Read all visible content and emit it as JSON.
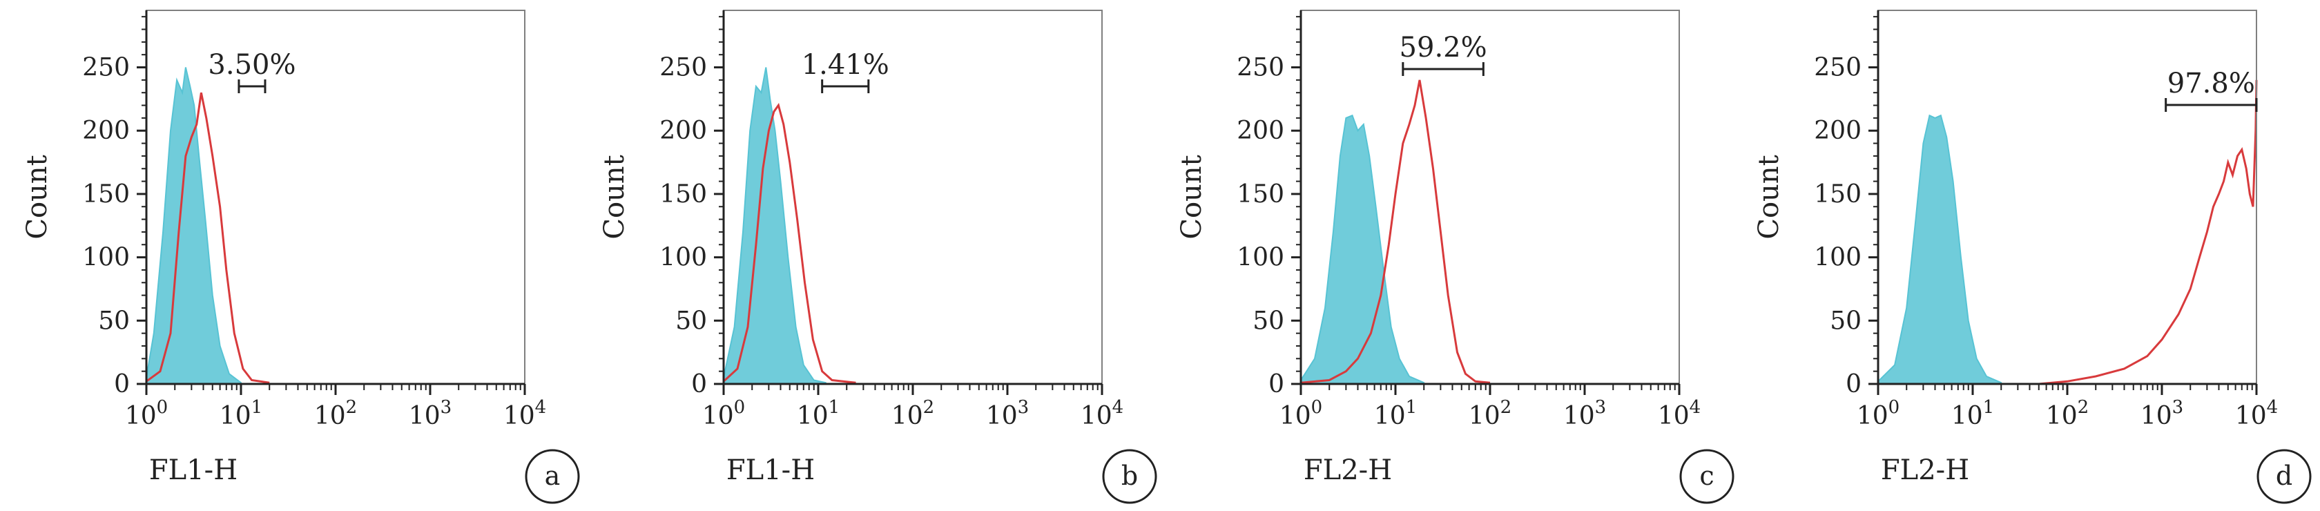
{
  "chart_data": [
    {
      "panel": "a",
      "type": "area",
      "xlabel": "FL1-H",
      "ylabel": "Count",
      "xscale": "log",
      "xlim": [
        1,
        10000
      ],
      "ylim": [
        0,
        295
      ],
      "yticks": [
        "0",
        "50",
        "100",
        "150",
        "200",
        "250"
      ],
      "gate": {
        "label": "3.50%",
        "x": [
          9.5,
          18
        ]
      },
      "series": [
        {
          "color": "#57c3d4",
          "fill": true,
          "peak_x": 2.6,
          "peak_y": 250,
          "sigma": 0.16,
          "points": [
            [
              1.0,
              5
            ],
            [
              1.2,
              40
            ],
            [
              1.5,
              120
            ],
            [
              1.8,
              200
            ],
            [
              2.1,
              240
            ],
            [
              2.4,
              230
            ],
            [
              2.6,
              250
            ],
            [
              2.9,
              235
            ],
            [
              3.2,
              220
            ],
            [
              3.6,
              180
            ],
            [
              4.2,
              130
            ],
            [
              5.0,
              70
            ],
            [
              6.0,
              30
            ],
            [
              7.5,
              8
            ],
            [
              10,
              1
            ]
          ]
        },
        {
          "color": "#d83a3c",
          "fill": false,
          "points": [
            [
              1.0,
              2
            ],
            [
              1.4,
              10
            ],
            [
              1.8,
              40
            ],
            [
              2.2,
              120
            ],
            [
              2.6,
              180
            ],
            [
              3.0,
              195
            ],
            [
              3.4,
              205
            ],
            [
              3.8,
              230
            ],
            [
              4.3,
              210
            ],
            [
              5.0,
              180
            ],
            [
              6.0,
              140
            ],
            [
              7.0,
              90
            ],
            [
              8.5,
              40
            ],
            [
              10.5,
              12
            ],
            [
              13,
              3
            ],
            [
              20,
              1
            ]
          ]
        }
      ]
    },
    {
      "panel": "b",
      "type": "area",
      "xlabel": "FL1-H",
      "ylabel": "Count",
      "xscale": "log",
      "xlim": [
        1,
        10000
      ],
      "ylim": [
        0,
        295
      ],
      "yticks": [
        "0",
        "50",
        "100",
        "150",
        "200",
        "250"
      ],
      "gate": {
        "label": "1.41%",
        "x": [
          11,
          34
        ]
      },
      "series": [
        {
          "color": "#57c3d4",
          "fill": true,
          "points": [
            [
              1.0,
              5
            ],
            [
              1.3,
              45
            ],
            [
              1.6,
              120
            ],
            [
              1.9,
              200
            ],
            [
              2.2,
              235
            ],
            [
              2.5,
              230
            ],
            [
              2.8,
              250
            ],
            [
              3.1,
              225
            ],
            [
              3.5,
              200
            ],
            [
              4.0,
              160
            ],
            [
              4.8,
              100
            ],
            [
              5.8,
              45
            ],
            [
              7.0,
              15
            ],
            [
              9,
              3
            ],
            [
              12,
              1
            ]
          ]
        },
        {
          "color": "#d83a3c",
          "fill": false,
          "points": [
            [
              1.0,
              2
            ],
            [
              1.4,
              12
            ],
            [
              1.8,
              45
            ],
            [
              2.2,
              110
            ],
            [
              2.6,
              170
            ],
            [
              3.0,
              200
            ],
            [
              3.4,
              215
            ],
            [
              3.8,
              220
            ],
            [
              4.3,
              205
            ],
            [
              5.0,
              175
            ],
            [
              6.0,
              130
            ],
            [
              7.2,
              80
            ],
            [
              8.8,
              35
            ],
            [
              11,
              10
            ],
            [
              14,
              3
            ],
            [
              25,
              1
            ]
          ]
        }
      ]
    },
    {
      "panel": "c",
      "type": "area",
      "xlabel": "FL2-H",
      "ylabel": "Count",
      "xscale": "log",
      "xlim": [
        1,
        10000
      ],
      "ylim": [
        0,
        295
      ],
      "yticks": [
        "0",
        "50",
        "100",
        "150",
        "200",
        "250"
      ],
      "gate": {
        "label": "59.2%",
        "x": [
          12,
          85
        ]
      },
      "series": [
        {
          "color": "#57c3d4",
          "fill": true,
          "points": [
            [
              1.0,
              3
            ],
            [
              1.4,
              20
            ],
            [
              1.8,
              60
            ],
            [
              2.2,
              120
            ],
            [
              2.6,
              180
            ],
            [
              3.0,
              210
            ],
            [
              3.5,
              212
            ],
            [
              4.0,
              200
            ],
            [
              4.6,
              205
            ],
            [
              5.3,
              180
            ],
            [
              6.2,
              140
            ],
            [
              7.5,
              90
            ],
            [
              9,
              45
            ],
            [
              11,
              20
            ],
            [
              14,
              6
            ],
            [
              20,
              1
            ]
          ]
        },
        {
          "color": "#d83a3c",
          "fill": false,
          "points": [
            [
              1.0,
              1
            ],
            [
              2.0,
              3
            ],
            [
              3.0,
              10
            ],
            [
              4.0,
              20
            ],
            [
              5.5,
              40
            ],
            [
              7.0,
              70
            ],
            [
              8.5,
              110
            ],
            [
              10,
              150
            ],
            [
              12,
              190
            ],
            [
              14,
              205
            ],
            [
              16,
              220
            ],
            [
              18,
              240
            ],
            [
              21,
              210
            ],
            [
              25,
              170
            ],
            [
              30,
              120
            ],
            [
              36,
              70
            ],
            [
              45,
              25
            ],
            [
              55,
              8
            ],
            [
              70,
              2
            ],
            [
              100,
              1
            ]
          ]
        }
      ]
    },
    {
      "panel": "d",
      "type": "area",
      "xlabel": "FL2-H",
      "ylabel": "Count",
      "xscale": "log",
      "xlim": [
        1,
        10000
      ],
      "ylim": [
        0,
        295
      ],
      "yticks": [
        "0",
        "50",
        "100",
        "150",
        "200",
        "250"
      ],
      "gate": {
        "label": "97.8%",
        "x": [
          1100,
          10000
        ]
      },
      "series": [
        {
          "color": "#57c3d4",
          "fill": true,
          "points": [
            [
              1.0,
              2
            ],
            [
              1.5,
              15
            ],
            [
              2.0,
              60
            ],
            [
              2.5,
              130
            ],
            [
              3.0,
              190
            ],
            [
              3.5,
              212
            ],
            [
              4.0,
              210
            ],
            [
              4.6,
              212
            ],
            [
              5.3,
              195
            ],
            [
              6.2,
              160
            ],
            [
              7.5,
              100
            ],
            [
              9,
              50
            ],
            [
              11,
              20
            ],
            [
              14,
              6
            ],
            [
              20,
              1
            ]
          ]
        },
        {
          "color": "#d83a3c",
          "fill": false,
          "points": [
            [
              50,
              0
            ],
            [
              100,
              2
            ],
            [
              200,
              6
            ],
            [
              400,
              12
            ],
            [
              700,
              22
            ],
            [
              1000,
              35
            ],
            [
              1500,
              55
            ],
            [
              2000,
              75
            ],
            [
              2500,
              100
            ],
            [
              3000,
              120
            ],
            [
              3500,
              140
            ],
            [
              4000,
              150
            ],
            [
              4500,
              160
            ],
            [
              5000,
              175
            ],
            [
              5600,
              165
            ],
            [
              6300,
              180
            ],
            [
              7000,
              185
            ],
            [
              7800,
              170
            ],
            [
              8500,
              150
            ],
            [
              9200,
              140
            ],
            [
              9800,
              200
            ],
            [
              10000,
              240
            ]
          ]
        }
      ]
    }
  ]
}
